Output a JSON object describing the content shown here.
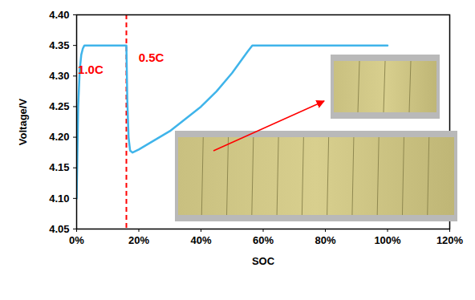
{
  "chart_data": {
    "type": "line",
    "x_label": "SOC",
    "y_label": "Voltage/V",
    "series": [
      {
        "name": "Voltage",
        "color": "#3fb4ea",
        "x": [
          0,
          0.5,
          1,
          1.5,
          2,
          2.5,
          16,
          16.3,
          16.7,
          17.2,
          18,
          20,
          25,
          30,
          35,
          40,
          45,
          50,
          55,
          56.5,
          100
        ],
        "values": [
          4.1,
          4.25,
          4.31,
          4.335,
          4.345,
          4.35,
          4.35,
          4.26,
          4.2,
          4.178,
          4.175,
          4.18,
          4.195,
          4.21,
          4.23,
          4.25,
          4.275,
          4.305,
          4.34,
          4.35,
          4.35
        ]
      }
    ],
    "reference_lines": [
      {
        "x": 16,
        "color": "#ff0000",
        "line_style": "dashed"
      }
    ],
    "annotations": [
      {
        "text": "1.0C",
        "x": 4.5,
        "y": 4.31,
        "color": "#ff0000"
      },
      {
        "text": "0.5C",
        "x": 24,
        "y": 4.33,
        "color": "#ff0000"
      }
    ],
    "xlim": [
      0,
      120
    ],
    "xticks": [
      {
        "value": 0,
        "label": "0%"
      },
      {
        "value": 20,
        "label": "20%"
      },
      {
        "value": 40,
        "label": "40%"
      },
      {
        "value": 60,
        "label": "60%"
      },
      {
        "value": 80,
        "label": "80%"
      },
      {
        "value": 100,
        "label": "100%"
      },
      {
        "value": 120,
        "label": "120%"
      }
    ],
    "ylim": [
      4.05,
      4.4
    ],
    "yticks": [
      4.05,
      {
        "value": 4.1,
        "label": "4.10"
      },
      4.15,
      {
        "value": 4.2,
        "label": "4.20"
      },
      4.25,
      {
        "value": 4.3,
        "label": "4.30"
      },
      4.35,
      {
        "value": 4.4,
        "label": "4.40"
      }
    ],
    "grid": false
  }
}
